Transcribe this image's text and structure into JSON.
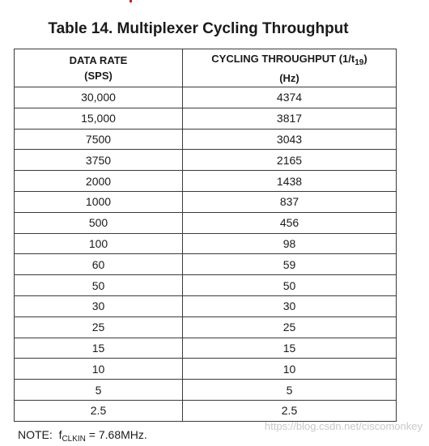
{
  "title": "Table 14. Multiplexer Cycling Throughput",
  "table": {
    "header": {
      "col1_line1": "DATA RATE",
      "col1_line2": "(SPS)",
      "col2_line1_main": "CYCLING THROUGHPUT (1/t",
      "col2_line1_sub": "19",
      "col2_line1_end": ")",
      "col2_line2": "(Hz)"
    },
    "rows": [
      {
        "rate": "30,000",
        "throughput": "4374"
      },
      {
        "rate": "15,000",
        "throughput": "3817"
      },
      {
        "rate": "7500",
        "throughput": "3043"
      },
      {
        "rate": "3750",
        "throughput": "2165"
      },
      {
        "rate": "2000",
        "throughput": "1438"
      },
      {
        "rate": "1000",
        "throughput": "837"
      },
      {
        "rate": "500",
        "throughput": "456"
      },
      {
        "rate": "100",
        "throughput": "98"
      },
      {
        "rate": "60",
        "throughput": "59"
      },
      {
        "rate": "50",
        "throughput": "50"
      },
      {
        "rate": "30",
        "throughput": "30"
      },
      {
        "rate": "25",
        "throughput": "25"
      },
      {
        "rate": "15",
        "throughput": "15"
      },
      {
        "rate": "10",
        "throughput": "10"
      },
      {
        "rate": "5",
        "throughput": "5"
      },
      {
        "rate": "2.5",
        "throughput": "2.5"
      }
    ]
  },
  "note": {
    "label": "NOTE:",
    "f": "f",
    "sub": "CLKIN",
    "value": " = 7.68MHz."
  },
  "watermark": "https://blog.csdn.net/ciscomonkey",
  "colors": {
    "accent_mark": "#d0191b",
    "watermark": "#c9c9c9"
  }
}
